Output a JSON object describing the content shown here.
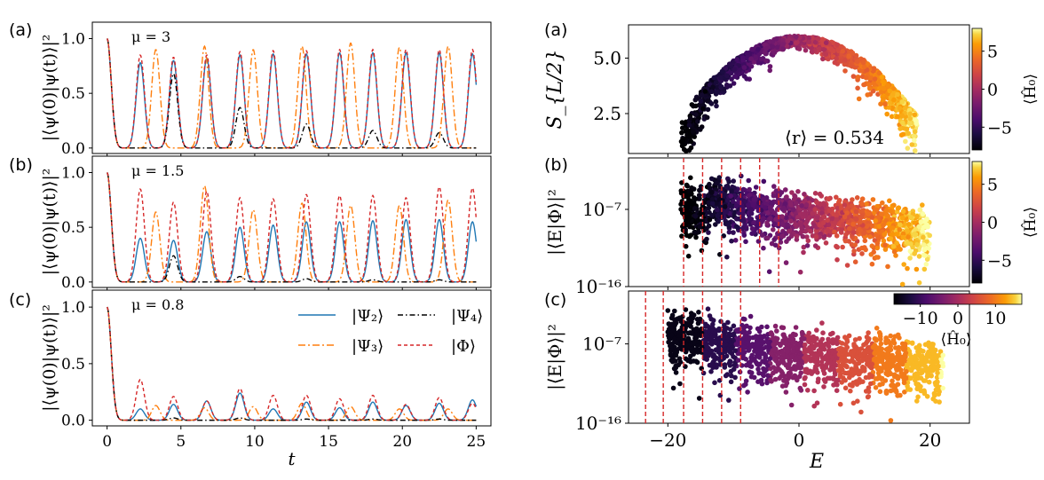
{
  "chart_data": [
    {
      "type": "line",
      "panel_label": "(a)",
      "annotation": "μ = 3",
      "ylabel": "|⟨ψ(0)|ψ(t)⟩|²",
      "xlabel": "",
      "xlim": [
        -1,
        26
      ],
      "ylim": [
        -0.05,
        1.15
      ],
      "yticks": [
        "0.0",
        "0.5",
        "1.0"
      ],
      "xticks": [
        0,
        5,
        10,
        15,
        20,
        25
      ],
      "series": [
        {
          "name": "|Ψ₂⟩",
          "color": "#1f77b4",
          "dash": "",
          "x": [
            0,
            2.25,
            4.5,
            6.75,
            9.0,
            11.25,
            13.5,
            15.75,
            18.0,
            20.25,
            22.5,
            24.75
          ],
          "values": [
            1.0,
            0.78,
            0.8,
            0.82,
            0.85,
            0.86,
            0.86,
            0.87,
            0.87,
            0.87,
            0.87,
            0.86
          ]
        },
        {
          "name": "|Ψ₃⟩",
          "color": "#ff7f0e",
          "dash": "8,3,2,3",
          "x": [
            0,
            3.3,
            6.6,
            9.9,
            13.2,
            16.5,
            19.8,
            23.1
          ],
          "values": [
            1.0,
            0.9,
            0.93,
            0.9,
            0.93,
            0.96,
            0.92,
            0.93
          ]
        },
        {
          "name": "|Ψ₄⟩",
          "color": "#000000",
          "dash": "6,3,1.5,3",
          "x": [
            0,
            4.5,
            9.0,
            13.5,
            18.0,
            22.5
          ],
          "values": [
            1.0,
            0.68,
            0.37,
            0.22,
            0.16,
            0.14
          ]
        },
        {
          "name": "|Φ⟩",
          "color": "#d62728",
          "dash": "4,3",
          "x": [
            0,
            2.25,
            4.5,
            6.75,
            9.0,
            11.25,
            13.5,
            15.75,
            18.0,
            20.25,
            22.5,
            24.75
          ],
          "values": [
            1.0,
            0.85,
            0.83,
            0.85,
            0.88,
            0.89,
            0.89,
            0.9,
            0.9,
            0.9,
            0.9,
            0.9
          ]
        }
      ]
    },
    {
      "type": "line",
      "panel_label": "(b)",
      "annotation": "μ = 1.5",
      "ylabel": "|⟨ψ(0)|ψ(t)⟩|²",
      "xlabel": "",
      "xlim": [
        -1,
        26
      ],
      "ylim": [
        -0.05,
        1.15
      ],
      "yticks": [
        "0.0",
        "0.5",
        "1.0"
      ],
      "xticks": [
        0,
        5,
        10,
        15,
        20,
        25
      ],
      "series": [
        {
          "name": "|Ψ₂⟩",
          "color": "#1f77b4",
          "dash": "",
          "x": [
            0,
            2.25,
            4.5,
            6.75,
            9.0,
            11.25,
            13.5,
            15.75,
            18.0,
            20.25,
            22.5,
            24.75
          ],
          "values": [
            1.0,
            0.4,
            0.38,
            0.46,
            0.5,
            0.52,
            0.55,
            0.55,
            0.56,
            0.57,
            0.57,
            0.55
          ]
        },
        {
          "name": "|Ψ₃⟩",
          "color": "#ff7f0e",
          "dash": "8,3,2,3",
          "x": [
            0,
            3.3,
            6.6,
            9.9,
            13.2,
            16.5,
            19.8,
            23.1
          ],
          "values": [
            1.0,
            0.64,
            0.88,
            0.66,
            0.72,
            0.7,
            0.7,
            0.75
          ]
        },
        {
          "name": "|Ψ₄⟩",
          "color": "#000000",
          "dash": "6,3,1.5,3",
          "x": [
            0,
            4.5,
            9.0,
            13.5,
            18.0,
            22.5
          ],
          "values": [
            1.0,
            0.24,
            0.05,
            0.03,
            0.02,
            0.02
          ]
        },
        {
          "name": "|Φ⟩",
          "color": "#d62728",
          "dash": "4,3",
          "x": [
            0,
            2.25,
            4.5,
            6.75,
            9.0,
            11.25,
            13.5,
            15.75,
            18.0,
            20.25,
            22.5,
            24.75
          ],
          "values": [
            1.0,
            0.85,
            0.73,
            0.83,
            0.77,
            0.76,
            0.8,
            0.79,
            0.79,
            0.77,
            0.87,
            0.86
          ]
        }
      ]
    },
    {
      "type": "line",
      "panel_label": "(c)",
      "annotation": "μ = 0.8",
      "ylabel": "|⟨ψ(0)|ψ(t)⟩|²",
      "xlabel": "t",
      "xlim": [
        -1,
        26
      ],
      "ylim": [
        -0.05,
        1.15
      ],
      "yticks": [
        "0.0",
        "0.5",
        "1.0"
      ],
      "xticks": [
        0,
        5,
        10,
        15,
        20,
        25
      ],
      "legend": [
        "|Ψ₂⟩",
        "|Ψ₃⟩",
        "|Ψ₄⟩",
        "|Φ⟩"
      ],
      "series": [
        {
          "name": "|Ψ₂⟩",
          "color": "#1f77b4",
          "dash": "",
          "x": [
            0,
            2.25,
            4.5,
            6.75,
            9.0,
            11.25,
            13.5,
            15.75,
            18.0,
            20.25,
            22.5,
            24.75
          ],
          "values": [
            1.0,
            0.1,
            0.14,
            0.17,
            0.24,
            0.1,
            0.16,
            0.11,
            0.16,
            0.13,
            0.15,
            0.18
          ]
        },
        {
          "name": "|Ψ₃⟩",
          "color": "#ff7f0e",
          "dash": "8,3,2,3",
          "x": [
            0,
            3.3,
            6.6,
            9.9,
            13.2,
            16.5,
            19.8,
            23.1
          ],
          "values": [
            1.0,
            0.13,
            0.11,
            0.12,
            0.15,
            0.12,
            0.1,
            0.1
          ]
        },
        {
          "name": "|Ψ₄⟩",
          "color": "#000000",
          "dash": "6,3,1.5,3",
          "x": [
            0,
            4.5,
            9.0,
            13.5,
            18.0,
            22.5
          ],
          "values": [
            1.0,
            0.02,
            0.02,
            0.01,
            0.01,
            0.01
          ]
        },
        {
          "name": "|Φ⟩",
          "color": "#d62728",
          "dash": "4,3",
          "x": [
            0,
            2.25,
            4.5,
            6.75,
            9.0,
            11.25,
            13.5,
            15.75,
            18.0,
            20.25,
            22.5,
            24.75
          ],
          "values": [
            1.0,
            0.36,
            0.21,
            0.17,
            0.28,
            0.22,
            0.22,
            0.19,
            0.22,
            0.14,
            0.2,
            0.15
          ]
        }
      ]
    },
    {
      "type": "scatter",
      "panel_label": "(a)",
      "ylabel": "S_{L/2}",
      "xlabel": "",
      "xlim": [
        -26,
        26
      ],
      "ylim": [
        0.7,
        6.5
      ],
      "yticks": [
        2.5,
        5.0
      ],
      "xticks": [
        -20,
        0,
        20
      ],
      "annotation": "⟨r⟩ = 0.534",
      "colorbar": {
        "label": "⟨Ĥ₀⟩",
        "range": [
          -8,
          8
        ],
        "ticks": [
          "5",
          "0",
          "−5"
        ],
        "tick_values": [
          5,
          0,
          -5
        ]
      },
      "description": "point cloud forming a dome: entropy peaks near E=0 and falls toward the spectrum edges"
    },
    {
      "type": "scatter",
      "panel_label": "(b)",
      "ylabel": "|⟨E|Φ⟩|²",
      "xlabel": "",
      "xlim": [
        -26,
        26
      ],
      "yticks": [
        "10⁻⁷",
        "10⁻¹⁶"
      ],
      "ylim_log10": [
        -16,
        -1
      ],
      "colorbar": {
        "label": "⟨Ĥ₀⟩",
        "range": [
          -8,
          8
        ],
        "ticks": [
          "5",
          "0",
          "−5"
        ],
        "tick_values": [
          5,
          0,
          -5
        ]
      },
      "red_vertical_lines_E": [
        -17.6,
        -14.7,
        -11.8,
        -8.9,
        -6.0,
        -3.1
      ]
    },
    {
      "type": "scatter",
      "panel_label": "(c)",
      "ylabel": "|⟨E|Φ⟩|²",
      "xlabel": "E",
      "xlim": [
        -26,
        26
      ],
      "xticks": [
        -20,
        0,
        20
      ],
      "xtick_labels": [
        "−20",
        "0",
        "20"
      ],
      "yticks": [
        "10⁻⁷",
        "10⁻¹⁶"
      ],
      "ylim_log10": [
        -16,
        -1
      ],
      "colorbar": {
        "label": "⟨Ĥ₀⟩",
        "range": [
          -17,
          17
        ],
        "ticks": [
          "−10",
          "0",
          "10"
        ],
        "tick_values": [
          -10,
          0,
          10
        ],
        "orientation": "horizontal"
      },
      "red_vertical_lines_E": [
        -23.4,
        -20.7,
        -17.6,
        -14.7,
        -11.8,
        -8.9
      ],
      "bands_E_centers": [
        -16,
        -10,
        -5,
        0,
        5,
        10,
        15,
        20
      ]
    }
  ]
}
